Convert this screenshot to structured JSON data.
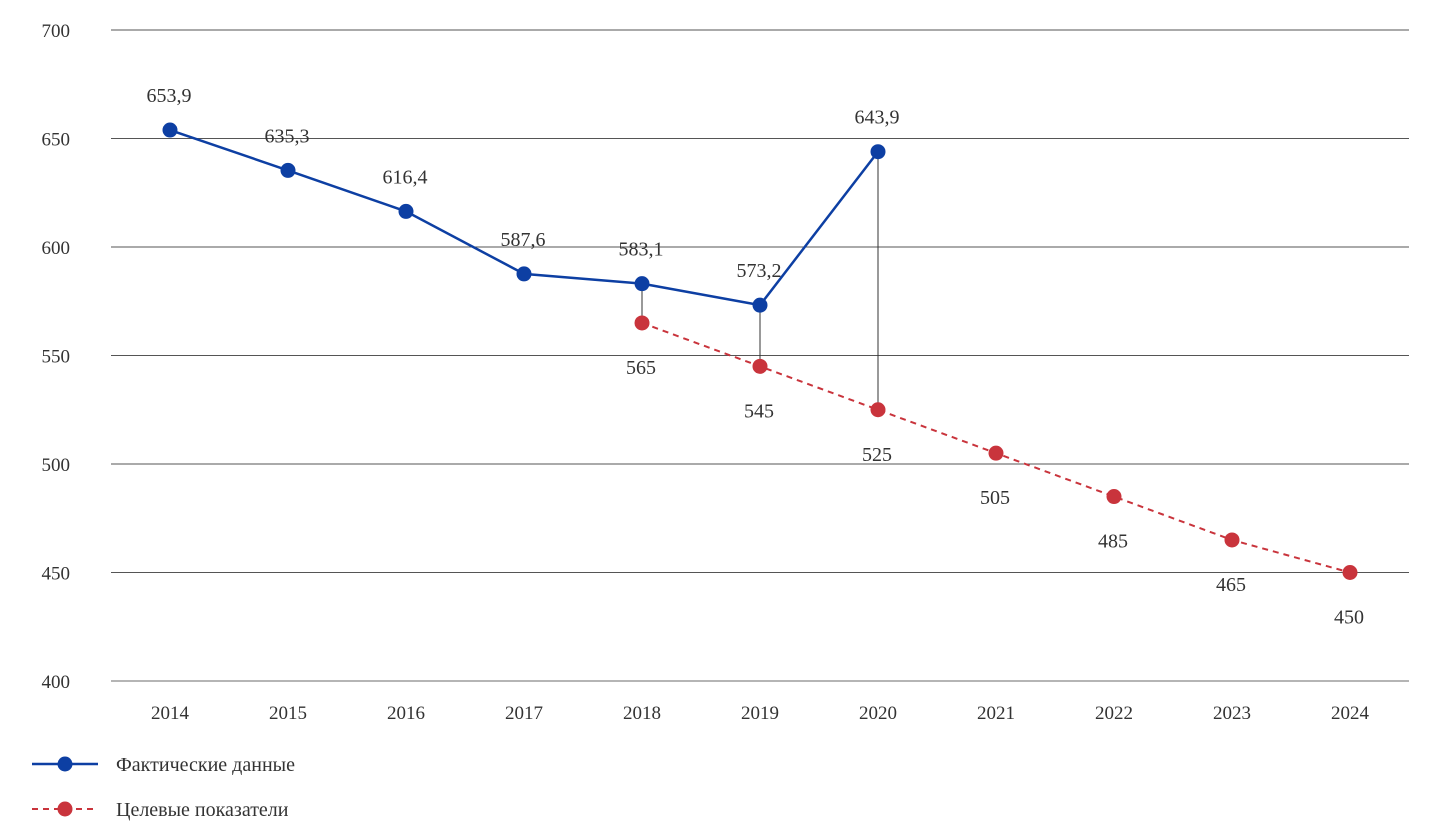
{
  "chart_data": {
    "type": "line",
    "title": "",
    "xlabel": "",
    "ylabel": "",
    "x": [
      "2014",
      "2015",
      "2016",
      "2017",
      "2018",
      "2019",
      "2020",
      "2021",
      "2022",
      "2023",
      "2024"
    ],
    "ylim": [
      400,
      700
    ],
    "yticks": [
      400,
      450,
      500,
      550,
      600,
      650,
      700
    ],
    "grid": true,
    "legend_position": "bottom-left",
    "series": [
      {
        "name": "Фактические данные",
        "style": "solid",
        "color": "#0d3fa3",
        "values": [
          653.9,
          635.3,
          616.4,
          587.6,
          583.1,
          573.2,
          643.9,
          null,
          null,
          null,
          null
        ],
        "labels": [
          "653,9",
          "635,3",
          "616,4",
          "587,6",
          "583,1",
          "573,2",
          "643,9",
          null,
          null,
          null,
          null
        ]
      },
      {
        "name": "Целевые показатели",
        "style": "dashed",
        "color": "#c9343c",
        "values": [
          null,
          null,
          null,
          null,
          565,
          545,
          525,
          505,
          485,
          465,
          450
        ],
        "labels": [
          null,
          null,
          null,
          null,
          "565",
          "545",
          "525",
          "505",
          "485",
          "465",
          "450"
        ]
      }
    ]
  }
}
